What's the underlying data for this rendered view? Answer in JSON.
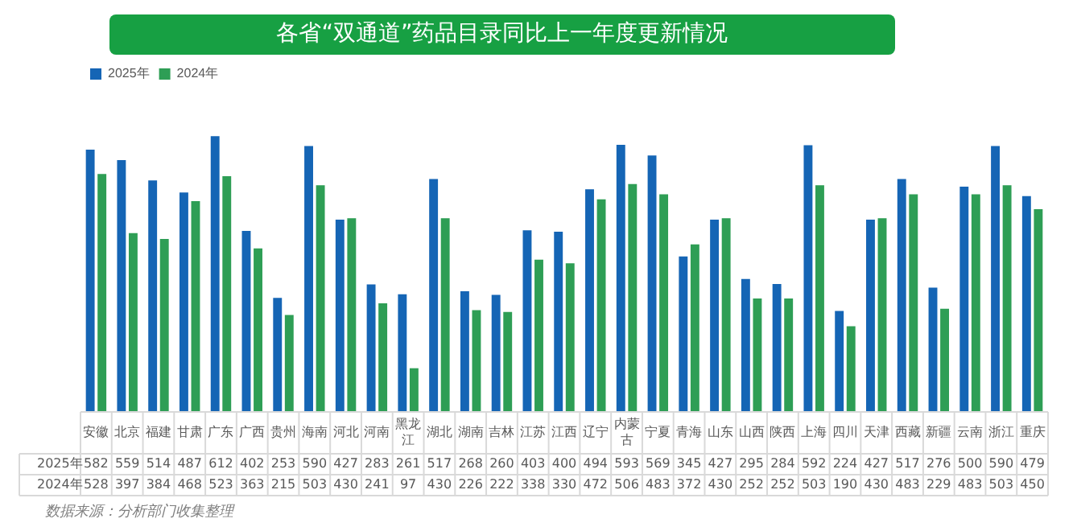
{
  "chart_data": {
    "type": "bar",
    "title": "各省“双通道”药品目录同比上一年度更新情况",
    "categories": [
      "安徽",
      "北京",
      "福建",
      "甘肃",
      "广东",
      "广西",
      "贵州",
      "海南",
      "河北",
      "河南",
      "黑龙江",
      "湖北",
      "湖南",
      "吉林",
      "江苏",
      "江西",
      "辽宁",
      "内蒙古",
      "宁夏",
      "青海",
      "山东",
      "山西",
      "陕西",
      "上海",
      "四川",
      "天津",
      "西藏",
      "新疆",
      "云南",
      "浙江",
      "重庆"
    ],
    "series": [
      {
        "name": "2025年",
        "color": "#1565b5",
        "values": [
          582,
          559,
          514,
          487,
          612,
          402,
          253,
          590,
          427,
          283,
          261,
          517,
          268,
          260,
          403,
          400,
          494,
          593,
          569,
          345,
          427,
          295,
          284,
          592,
          224,
          427,
          517,
          276,
          500,
          590,
          479
        ]
      },
      {
        "name": "2024年",
        "color": "#2e9e55",
        "values": [
          528,
          397,
          384,
          468,
          523,
          363,
          215,
          503,
          430,
          241,
          97,
          430,
          226,
          222,
          338,
          330,
          472,
          506,
          483,
          372,
          430,
          252,
          252,
          503,
          190,
          430,
          483,
          229,
          483,
          503,
          450
        ]
      }
    ],
    "data_labels": true,
    "legend": "top left",
    "grid": false,
    "tick_labels": "x",
    "annotations": [
      "数据来源：分析部门收集整理"
    ]
  }
}
